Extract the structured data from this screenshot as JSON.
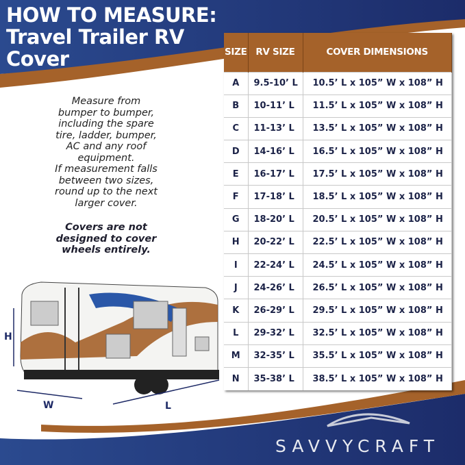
{
  "title": [
    "HOW TO MEASURE:",
    "Travel Trailer RV",
    "Cover"
  ],
  "instructions": [
    "Measure from",
    "bumper to bumper,",
    "including the spare",
    "tire, ladder, bumper,",
    "AC and any roof",
    "equipment.",
    "If measurement falls",
    "between two sizes,",
    "round up to the next",
    "larger cover."
  ],
  "note": [
    "Covers are not",
    "designed to cover",
    "wheels entirely."
  ],
  "diagram_labels": {
    "h": "H",
    "w": "W",
    "l": "L"
  },
  "table": {
    "headers": [
      "SIZE",
      "RV SIZE",
      "COVER DIMENSIONS"
    ],
    "rows": [
      [
        "A",
        "9.5-10’ L",
        "10.5’ L x 105” W x 108” H"
      ],
      [
        "B",
        "10-11’ L",
        "11.5’ L x 105” W x 108” H"
      ],
      [
        "C",
        "11-13’ L",
        "13.5’ L x 105” W x 108” H"
      ],
      [
        "D",
        "14-16’ L",
        "16.5’ L x 105” W x 108” H"
      ],
      [
        "E",
        "16-17’ L",
        "17.5’ L x 105” W x 108” H"
      ],
      [
        "F",
        "17-18’ L",
        "18.5’ L x 105” W x 108” H"
      ],
      [
        "G",
        "18-20’ L",
        "20.5’ L x 105” W x 108” H"
      ],
      [
        "H",
        "20-22’ L",
        "22.5’ L x 105” W x 108” H"
      ],
      [
        "I",
        "22-24’ L",
        "24.5’ L x 105” W x 108” H"
      ],
      [
        "J",
        "24-26’ L",
        "26.5’ L x 105” W x 108” H"
      ],
      [
        "K",
        "26-29’ L",
        "29.5’ L x 105” W x 108” H"
      ],
      [
        "L",
        "29-32’ L",
        "32.5’ L x 105” W x 108” H"
      ],
      [
        "M",
        "32-35’ L",
        "35.5’ L x 105” W x 108” H"
      ],
      [
        "N",
        "35-38’ L",
        "38.5’ L x 105” W x 108” H"
      ]
    ]
  },
  "brand": "SAVVYCRAFT",
  "colors": {
    "navy": "#233a7a",
    "brown": "#a5622a",
    "text": "#1b2247"
  }
}
